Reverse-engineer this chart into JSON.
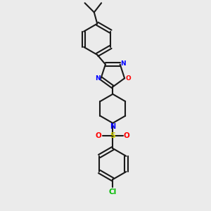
{
  "bg_color": "#ebebeb",
  "bond_color": "#1a1a1a",
  "N_color": "#0000ff",
  "O_color": "#ff0000",
  "S_color": "#cccc00",
  "Cl_color": "#00bb00",
  "figsize": [
    3.0,
    3.0
  ],
  "dpi": 100,
  "xlim": [
    0,
    10
  ],
  "ylim": [
    0,
    10
  ]
}
